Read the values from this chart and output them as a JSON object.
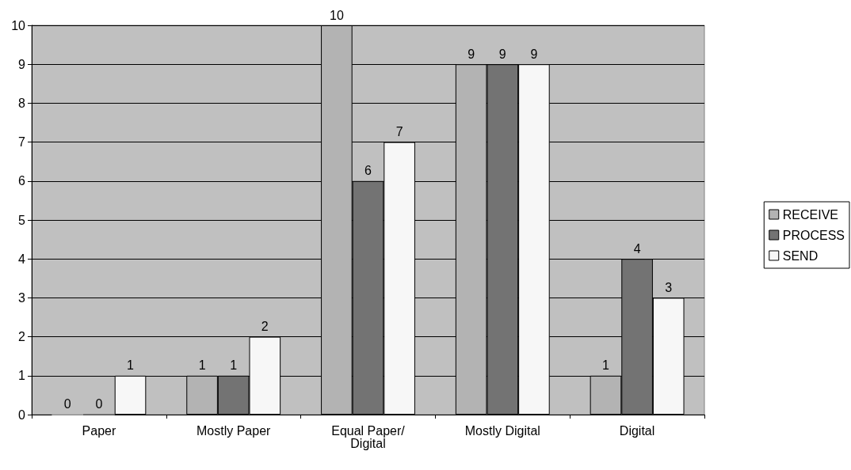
{
  "chart_data": {
    "type": "bar",
    "categories": [
      "Paper",
      "Mostly Paper",
      "Equal Paper/Digital",
      "Mostly Digital",
      "Digital"
    ],
    "series": [
      {
        "name": "RECEIVE",
        "color": "#b3b3b3",
        "values": [
          0,
          1,
          10,
          9,
          1
        ]
      },
      {
        "name": "PROCESS",
        "color": "#737373",
        "values": [
          0,
          1,
          6,
          9,
          4
        ]
      },
      {
        "name": "SEND",
        "color": "#f7f7f7",
        "values": [
          1,
          2,
          7,
          9,
          3
        ]
      }
    ],
    "ylim": [
      0,
      10
    ],
    "yticks": [
      0,
      1,
      2,
      3,
      4,
      5,
      6,
      7,
      8,
      9,
      10
    ],
    "grid": "y",
    "legend": "right",
    "data_labels": true
  }
}
